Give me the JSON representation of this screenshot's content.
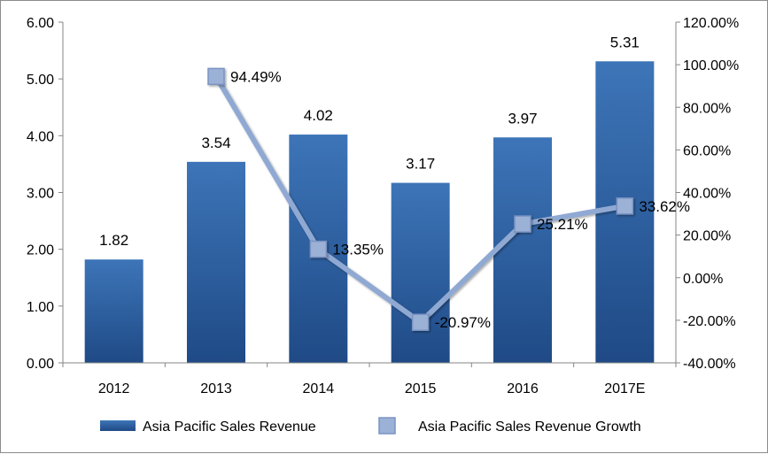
{
  "chart_data": {
    "type": "bar+line",
    "categories": [
      "2012",
      "2013",
      "2014",
      "2015",
      "2016",
      "2017E"
    ],
    "series": [
      {
        "name": "Asia Pacific Sales Revenue",
        "kind": "bar",
        "axis": "left",
        "values": [
          1.82,
          3.54,
          4.02,
          3.17,
          3.97,
          5.31
        ],
        "labels": [
          "1.82",
          "3.54",
          "4.02",
          "3.17",
          "3.97",
          "5.31"
        ]
      },
      {
        "name": "Asia Pacific Sales Revenue Growth",
        "kind": "line",
        "axis": "right",
        "values": [
          null,
          94.49,
          13.35,
          -20.97,
          25.21,
          33.62
        ],
        "labels": [
          "",
          "94.49%",
          "13.35%",
          "-20.97%",
          "25.21%",
          "33.62%"
        ]
      }
    ],
    "y_left": {
      "min": 0,
      "max": 6,
      "step": 1,
      "tick_labels": [
        "0.00",
        "1.00",
        "2.00",
        "3.00",
        "4.00",
        "5.00",
        "6.00"
      ]
    },
    "y_right": {
      "min": -40,
      "max": 120,
      "step": 20,
      "tick_labels": [
        "-40.00%",
        "-20.00%",
        "0.00%",
        "20.00%",
        "40.00%",
        "60.00%",
        "80.00%",
        "100.00%",
        "120.00%"
      ]
    },
    "grid": false,
    "legend_position": "bottom",
    "colors": {
      "bar_top": "#3d75b8",
      "bar_bottom": "#1f4a86",
      "line": "#8fa9d3",
      "marker_fill": "#9cb1d6",
      "marker_stroke": "#7a93c2",
      "axis": "#868686"
    }
  }
}
